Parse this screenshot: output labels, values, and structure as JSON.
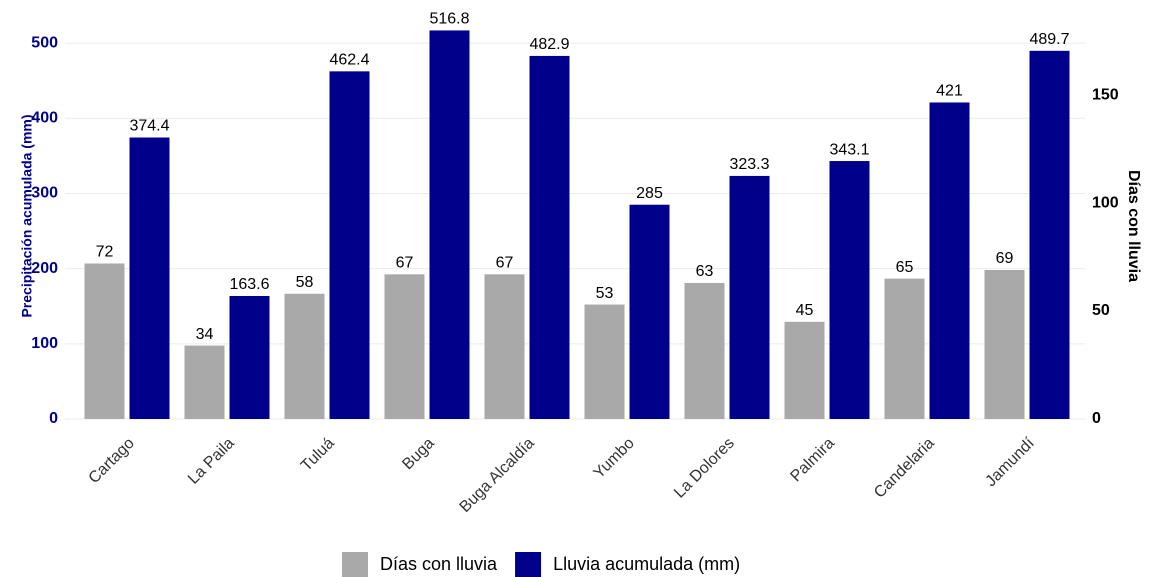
{
  "chart_data": {
    "type": "bar",
    "categories": [
      "Cartago",
      "La Paila",
      "Tuluá",
      "Buga",
      "Buga Alcaldía",
      "Yumbo",
      "La Dolores",
      "Palmira",
      "Candelaria",
      "Jamundí"
    ],
    "series": [
      {
        "name": "Días con lluvia",
        "color": "#a9a9a9",
        "axis": "y2",
        "values": [
          72,
          34,
          58,
          67,
          67,
          53,
          63,
          45,
          65,
          69
        ]
      },
      {
        "name": "Lluvia acumulada (mm)",
        "color": "#00008b",
        "values": [
          374.4,
          163.6,
          462.4,
          516.8,
          482.9,
          285,
          323.3,
          343.1,
          421,
          489.7
        ]
      }
    ],
    "y_label": "Precipitación acumulada (mm)",
    "y2_label": "Días con lluvia",
    "ylim": [
      0,
      540
    ],
    "yticks": [
      0,
      100,
      200,
      300,
      400,
      500
    ],
    "y2lim": [
      0,
      188
    ],
    "y2ticks": [
      0,
      50,
      100,
      150
    ],
    "grid": true,
    "legend": "bottom"
  }
}
